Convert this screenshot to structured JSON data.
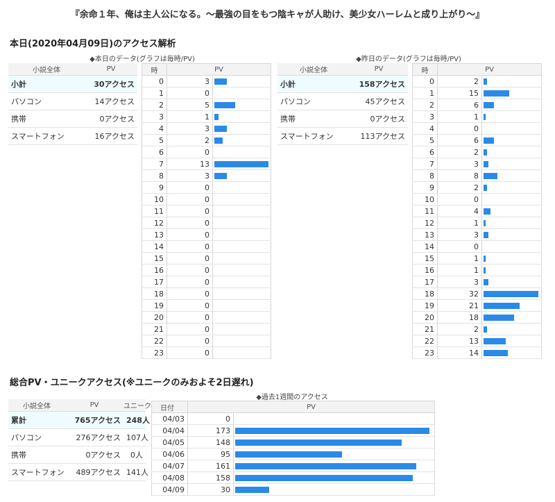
{
  "novel_title": "『余命１年、俺は主人公になる。～最強の目をもつ陰キャが人助け、美少女ハーレムと成り上がり～』",
  "today_section": {
    "title": "本日(2020年04月09日)のアクセス解析",
    "today_caption": "◆本日のデータ(グラフは毎時/PV)",
    "yesterday_caption": "◆昨日のデータ(グラフは毎時/PV)",
    "summary_headers": [
      "小説全体",
      "PV"
    ],
    "hourly_headers": [
      "時",
      "PV"
    ],
    "today_summary": [
      {
        "label": "小計",
        "value": "30アクセス"
      },
      {
        "label": "パソコン",
        "value": "14アクセス"
      },
      {
        "label": "携帯",
        "value": "0アクセス"
      },
      {
        "label": "スマートフォン",
        "value": "16アクセス"
      }
    ],
    "yesterday_summary": [
      {
        "label": "小計",
        "value": "158アクセス"
      },
      {
        "label": "パソコン",
        "value": "45アクセス"
      },
      {
        "label": "携帯",
        "value": "0アクセス"
      },
      {
        "label": "スマートフォン",
        "value": "113アクセス"
      }
    ],
    "today_hourly": [
      3,
      0,
      5,
      1,
      3,
      2,
      0,
      13,
      3,
      0,
      0,
      0,
      0,
      0,
      0,
      0,
      0,
      0,
      0,
      0,
      0,
      0,
      0,
      0
    ],
    "yesterday_hourly": [
      2,
      15,
      6,
      1,
      0,
      6,
      2,
      3,
      8,
      2,
      0,
      4,
      1,
      3,
      0,
      1,
      1,
      3,
      32,
      21,
      18,
      2,
      13,
      14
    ]
  },
  "total_section": {
    "title": "総合PV・ユニークアクセス(※ユニークのみおよそ2日遅れ)",
    "week_caption": "◆過去1週間のアクセス",
    "summary_headers": [
      "小説全体",
      "PV",
      "ユニーク"
    ],
    "summary": [
      {
        "label": "累計",
        "pv": "765アクセス",
        "unique": "248人"
      },
      {
        "label": "パソコン",
        "pv": "276アクセス",
        "unique": "107人"
      },
      {
        "label": "携帯",
        "pv": "0アクセス",
        "unique": "0人"
      },
      {
        "label": "スマートフォン",
        "pv": "489アクセス",
        "unique": "141人"
      }
    ],
    "week_headers": [
      "日付",
      "PV"
    ],
    "week": [
      {
        "date": "04/03",
        "pv": 0
      },
      {
        "date": "04/04",
        "pv": 173
      },
      {
        "date": "04/05",
        "pv": 148
      },
      {
        "date": "04/06",
        "pv": 95
      },
      {
        "date": "04/07",
        "pv": 161
      },
      {
        "date": "04/08",
        "pv": 158
      },
      {
        "date": "04/09",
        "pv": 30
      }
    ]
  },
  "colors": {
    "bar": "#2a8ae8",
    "highlight_row": "#eefcff",
    "header_bg": "#f3f3f3"
  }
}
